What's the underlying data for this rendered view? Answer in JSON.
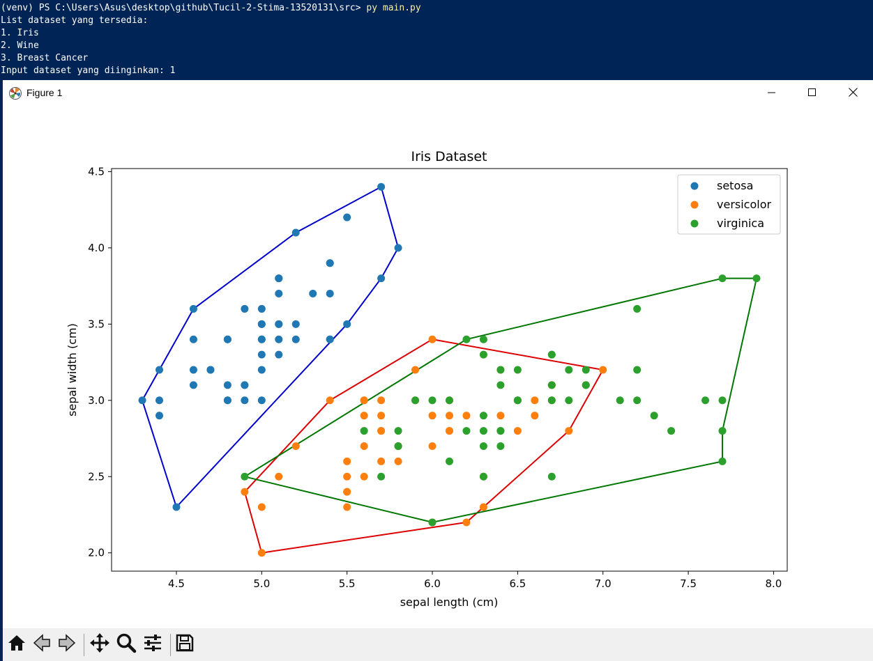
{
  "terminal": {
    "prompt_venv": "(venv)",
    "prompt_path": " PS C:\\Users\\Asus\\desktop\\github\\Tucil-2-Stima-13520131\\src> ",
    "command": "py main.py",
    "lines": [
      "List dataset yang tersedia:",
      "1. Iris",
      "2. Wine",
      "3. Breast Cancer",
      "Input dataset yang diinginkan: 1"
    ]
  },
  "window": {
    "title": "Figure 1",
    "icon": "matplotlib-icon",
    "controls": [
      "minimize-icon",
      "maximize-icon",
      "close-icon"
    ]
  },
  "toolbar": {
    "buttons": [
      "home-icon",
      "back-icon",
      "forward-icon",
      "pan-icon",
      "zoom-icon",
      "configure-subplots-icon",
      "save-icon"
    ]
  },
  "colors": {
    "setosa": "#1f77b4",
    "versicolor": "#ff7f0e",
    "virginica": "#2ca02c",
    "hull_setosa": "#0000cc",
    "hull_versicolor": "#dd0000",
    "hull_virginica": "#007700"
  },
  "chart_data": {
    "type": "scatter",
    "title": "Iris Dataset",
    "xlabel": "sepal length (cm)",
    "ylabel": "sepal width (cm)",
    "xlim": [
      4.12,
      8.08
    ],
    "ylim": [
      1.88,
      4.52
    ],
    "xticks": [
      "4.5",
      "5.0",
      "5.5",
      "6.0",
      "6.5",
      "7.0",
      "7.5",
      "8.0"
    ],
    "yticks": [
      "2.0",
      "2.5",
      "3.0",
      "3.5",
      "4.0",
      "4.5"
    ],
    "grid": false,
    "legend_position": "top-right",
    "series": [
      {
        "name": "setosa",
        "color": "#1f77b4",
        "points": [
          [
            5.1,
            3.5
          ],
          [
            4.9,
            3.0
          ],
          [
            4.7,
            3.2
          ],
          [
            4.6,
            3.1
          ],
          [
            5.0,
            3.6
          ],
          [
            5.4,
            3.9
          ],
          [
            4.6,
            3.4
          ],
          [
            5.0,
            3.4
          ],
          [
            4.4,
            2.9
          ],
          [
            4.9,
            3.1
          ],
          [
            5.4,
            3.7
          ],
          [
            4.8,
            3.4
          ],
          [
            4.8,
            3.0
          ],
          [
            4.3,
            3.0
          ],
          [
            5.8,
            4.0
          ],
          [
            5.7,
            4.4
          ],
          [
            5.4,
            3.9
          ],
          [
            5.1,
            3.5
          ],
          [
            5.7,
            3.8
          ],
          [
            5.1,
            3.8
          ],
          [
            5.4,
            3.4
          ],
          [
            5.1,
            3.7
          ],
          [
            4.6,
            3.6
          ],
          [
            5.1,
            3.3
          ],
          [
            4.8,
            3.4
          ],
          [
            5.0,
            3.0
          ],
          [
            5.0,
            3.4
          ],
          [
            5.2,
            3.5
          ],
          [
            5.2,
            3.4
          ],
          [
            4.7,
            3.2
          ],
          [
            4.8,
            3.1
          ],
          [
            5.4,
            3.4
          ],
          [
            5.2,
            4.1
          ],
          [
            5.5,
            4.2
          ],
          [
            4.9,
            3.1
          ],
          [
            5.0,
            3.2
          ],
          [
            5.5,
            3.5
          ],
          [
            4.9,
            3.6
          ],
          [
            4.4,
            3.0
          ],
          [
            5.1,
            3.4
          ],
          [
            5.0,
            3.5
          ],
          [
            4.5,
            2.3
          ],
          [
            4.4,
            3.2
          ],
          [
            5.0,
            3.5
          ],
          [
            5.1,
            3.8
          ],
          [
            4.8,
            3.0
          ],
          [
            5.1,
            3.8
          ],
          [
            4.6,
            3.2
          ],
          [
            5.3,
            3.7
          ],
          [
            5.0,
            3.3
          ]
        ],
        "hull": [
          [
            4.3,
            3.0
          ],
          [
            4.5,
            2.3
          ],
          [
            5.5,
            3.5
          ],
          [
            5.7,
            3.8
          ],
          [
            5.8,
            4.0
          ],
          [
            5.7,
            4.4
          ],
          [
            5.2,
            4.1
          ],
          [
            4.6,
            3.6
          ],
          [
            4.4,
            3.2
          ],
          [
            4.3,
            3.0
          ]
        ]
      },
      {
        "name": "versicolor",
        "color": "#ff7f0e",
        "points": [
          [
            7.0,
            3.2
          ],
          [
            6.4,
            3.2
          ],
          [
            6.9,
            3.1
          ],
          [
            5.5,
            2.3
          ],
          [
            6.5,
            2.8
          ],
          [
            5.7,
            2.8
          ],
          [
            6.3,
            3.3
          ],
          [
            4.9,
            2.4
          ],
          [
            6.6,
            2.9
          ],
          [
            5.2,
            2.7
          ],
          [
            5.0,
            2.0
          ],
          [
            5.9,
            3.0
          ],
          [
            6.0,
            2.2
          ],
          [
            6.1,
            2.9
          ],
          [
            5.6,
            2.9
          ],
          [
            6.7,
            3.1
          ],
          [
            5.6,
            3.0
          ],
          [
            5.8,
            2.7
          ],
          [
            6.2,
            2.2
          ],
          [
            5.6,
            2.5
          ],
          [
            5.9,
            3.2
          ],
          [
            6.1,
            2.8
          ],
          [
            6.3,
            2.5
          ],
          [
            6.1,
            2.8
          ],
          [
            6.4,
            2.9
          ],
          [
            6.6,
            3.0
          ],
          [
            6.8,
            2.8
          ],
          [
            6.7,
            3.0
          ],
          [
            6.0,
            2.9
          ],
          [
            5.7,
            2.6
          ],
          [
            5.5,
            2.4
          ],
          [
            5.5,
            2.4
          ],
          [
            5.8,
            2.7
          ],
          [
            6.0,
            2.7
          ],
          [
            5.4,
            3.0
          ],
          [
            6.0,
            3.4
          ],
          [
            6.7,
            3.1
          ],
          [
            6.3,
            2.3
          ],
          [
            5.6,
            3.0
          ],
          [
            5.5,
            2.5
          ],
          [
            5.5,
            2.6
          ],
          [
            6.1,
            3.0
          ],
          [
            5.8,
            2.6
          ],
          [
            5.0,
            2.3
          ],
          [
            5.6,
            2.7
          ],
          [
            5.7,
            3.0
          ],
          [
            5.7,
            2.9
          ],
          [
            6.2,
            2.9
          ],
          [
            5.1,
            2.5
          ],
          [
            5.7,
            2.8
          ]
        ],
        "hull": [
          [
            5.0,
            2.0
          ],
          [
            6.2,
            2.2
          ],
          [
            6.3,
            2.3
          ],
          [
            6.8,
            2.8
          ],
          [
            7.0,
            3.2
          ],
          [
            6.0,
            3.4
          ],
          [
            5.4,
            3.0
          ],
          [
            4.9,
            2.4
          ],
          [
            5.0,
            2.0
          ]
        ]
      },
      {
        "name": "virginica",
        "color": "#2ca02c",
        "points": [
          [
            6.3,
            3.3
          ],
          [
            5.8,
            2.7
          ],
          [
            7.1,
            3.0
          ],
          [
            6.3,
            2.9
          ],
          [
            6.5,
            3.0
          ],
          [
            7.6,
            3.0
          ],
          [
            4.9,
            2.5
          ],
          [
            7.3,
            2.9
          ],
          [
            6.7,
            2.5
          ],
          [
            7.2,
            3.6
          ],
          [
            6.5,
            3.2
          ],
          [
            6.4,
            2.7
          ],
          [
            6.8,
            3.0
          ],
          [
            5.7,
            2.5
          ],
          [
            5.8,
            2.8
          ],
          [
            6.4,
            3.2
          ],
          [
            6.5,
            3.0
          ],
          [
            7.7,
            3.8
          ],
          [
            7.7,
            2.6
          ],
          [
            6.0,
            2.2
          ],
          [
            6.9,
            3.2
          ],
          [
            5.6,
            2.8
          ],
          [
            7.7,
            2.8
          ],
          [
            6.3,
            2.7
          ],
          [
            6.7,
            3.3
          ],
          [
            7.2,
            3.2
          ],
          [
            6.2,
            2.8
          ],
          [
            6.1,
            3.0
          ],
          [
            6.4,
            2.8
          ],
          [
            7.2,
            3.0
          ],
          [
            7.4,
            2.8
          ],
          [
            7.9,
            3.8
          ],
          [
            6.4,
            2.8
          ],
          [
            6.3,
            2.8
          ],
          [
            6.1,
            2.6
          ],
          [
            7.7,
            3.0
          ],
          [
            6.3,
            3.4
          ],
          [
            6.4,
            3.1
          ],
          [
            6.0,
            3.0
          ],
          [
            6.9,
            3.1
          ],
          [
            6.7,
            3.1
          ],
          [
            6.9,
            3.1
          ],
          [
            5.8,
            2.7
          ],
          [
            6.8,
            3.2
          ],
          [
            6.7,
            3.3
          ],
          [
            6.7,
            3.0
          ],
          [
            6.3,
            2.5
          ],
          [
            6.5,
            3.0
          ],
          [
            6.2,
            3.4
          ],
          [
            5.9,
            3.0
          ]
        ],
        "hull": [
          [
            4.9,
            2.5
          ],
          [
            6.0,
            2.2
          ],
          [
            7.7,
            2.6
          ],
          [
            7.7,
            2.8
          ],
          [
            7.9,
            3.8
          ],
          [
            7.7,
            3.8
          ],
          [
            6.2,
            3.4
          ],
          [
            4.9,
            2.5
          ]
        ]
      }
    ]
  }
}
